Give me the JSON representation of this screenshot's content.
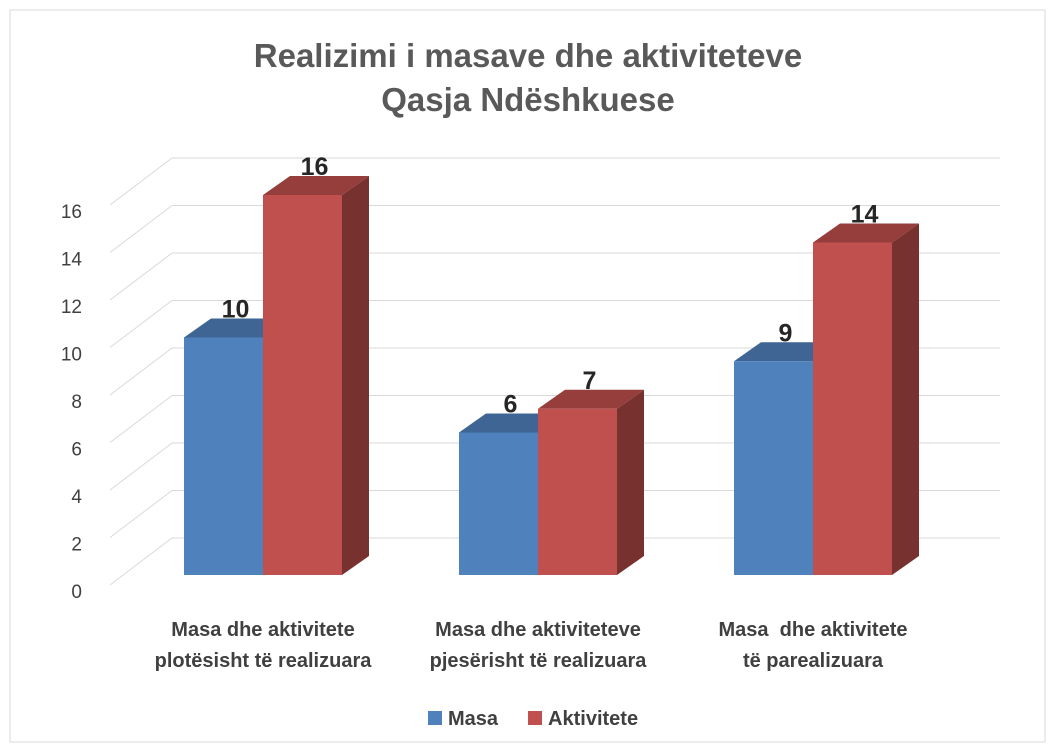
{
  "chart_data": {
    "type": "bar3d",
    "title": "Realizimi i masave dhe aktiviteteve\nQasja Ndëshkuese",
    "categories": [
      "Masa dhe aktivitete\nplotësisht të realizuara",
      "Masa dhe aktiviteteve\npjesërisht të realizuara",
      "Masa  dhe aktivitete\ntë parealizuara"
    ],
    "series": [
      {
        "name": "Masa",
        "color": "#4f81bd",
        "values": [
          10,
          6,
          9
        ]
      },
      {
        "name": "Aktivitete",
        "color": "#c0504d",
        "values": [
          16,
          7,
          14
        ]
      }
    ],
    "ylim": [
      0,
      16
    ],
    "yticks": [
      0,
      2,
      4,
      6,
      8,
      10,
      12,
      14,
      16
    ],
    "grid": true,
    "legend": "bottom"
  }
}
